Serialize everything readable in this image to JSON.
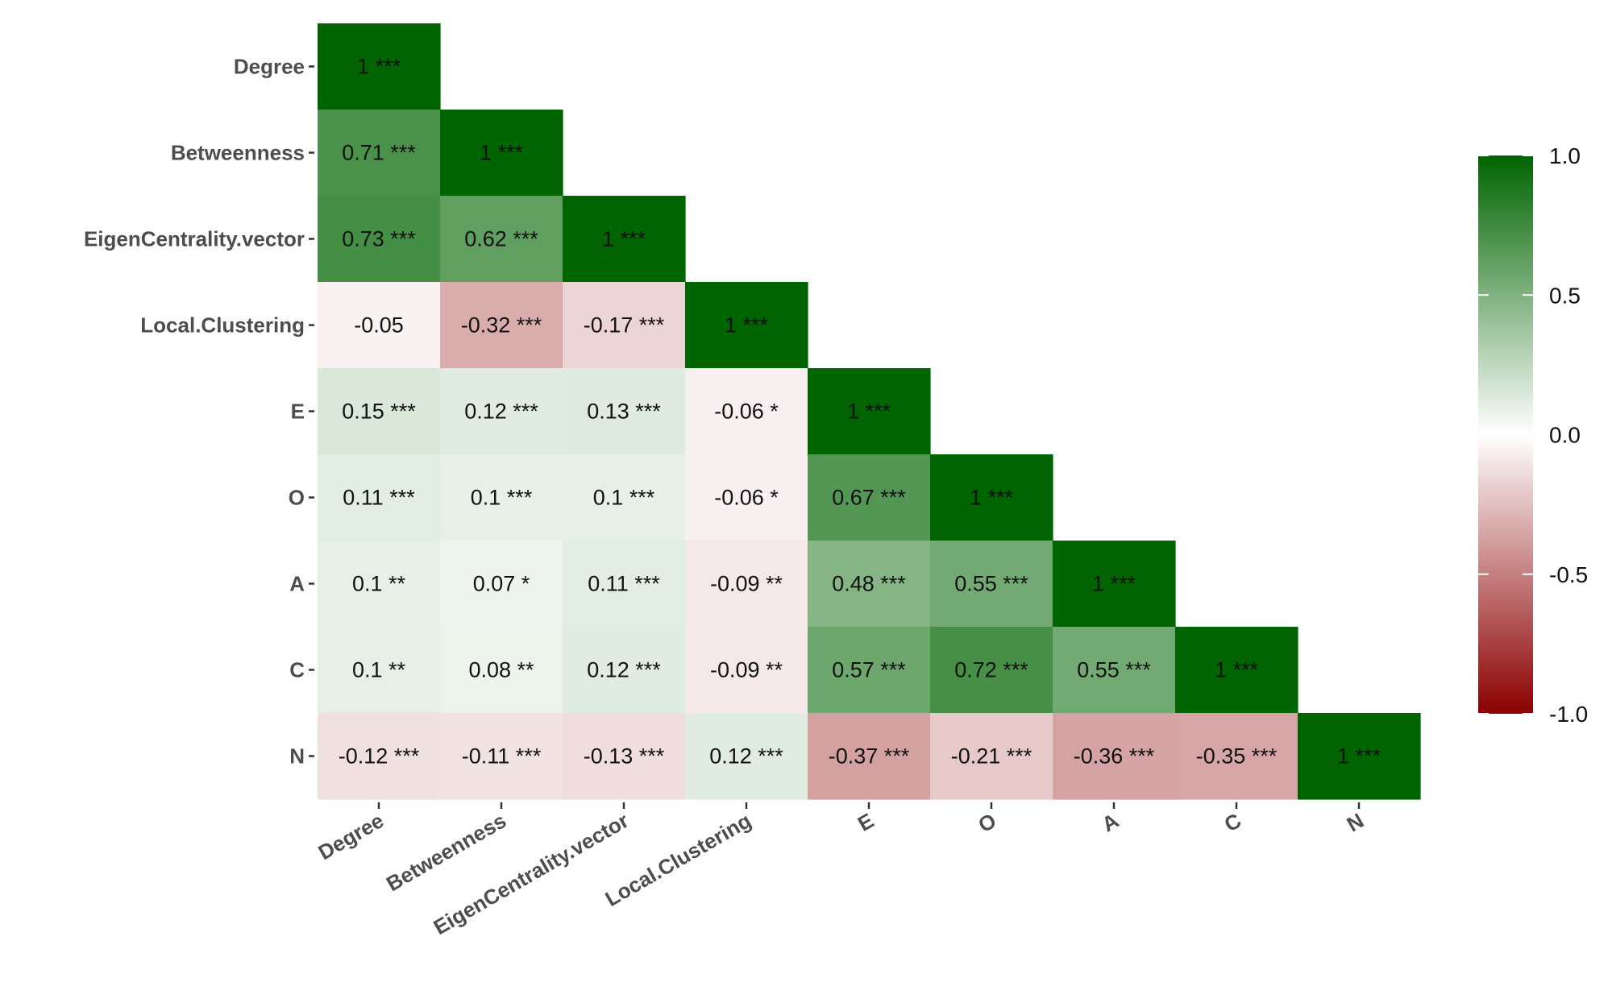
{
  "chart_data": {
    "type": "heatmap",
    "title": "",
    "xlabel": "",
    "ylabel": "",
    "variables": [
      "Degree",
      "Betweenness",
      "EigenCentrality.vector",
      "Local.Clustering",
      "E",
      "O",
      "A",
      "C",
      "N"
    ],
    "cells": [
      {
        "row": "Degree",
        "col": "Degree",
        "value": 1,
        "label": "1 ***"
      },
      {
        "row": "Betweenness",
        "col": "Degree",
        "value": 0.71,
        "label": "0.71 ***"
      },
      {
        "row": "Betweenness",
        "col": "Betweenness",
        "value": 1,
        "label": "1 ***"
      },
      {
        "row": "EigenCentrality.vector",
        "col": "Degree",
        "value": 0.73,
        "label": "0.73 ***"
      },
      {
        "row": "EigenCentrality.vector",
        "col": "Betweenness",
        "value": 0.62,
        "label": "0.62 ***"
      },
      {
        "row": "EigenCentrality.vector",
        "col": "EigenCentrality.vector",
        "value": 1,
        "label": "1 ***"
      },
      {
        "row": "Local.Clustering",
        "col": "Degree",
        "value": -0.05,
        "label": "-0.05"
      },
      {
        "row": "Local.Clustering",
        "col": "Betweenness",
        "value": -0.32,
        "label": "-0.32 ***"
      },
      {
        "row": "Local.Clustering",
        "col": "EigenCentrality.vector",
        "value": -0.17,
        "label": "-0.17 ***"
      },
      {
        "row": "Local.Clustering",
        "col": "Local.Clustering",
        "value": 1,
        "label": "1 ***"
      },
      {
        "row": "E",
        "col": "Degree",
        "value": 0.15,
        "label": "0.15 ***"
      },
      {
        "row": "E",
        "col": "Betweenness",
        "value": 0.12,
        "label": "0.12 ***"
      },
      {
        "row": "E",
        "col": "EigenCentrality.vector",
        "value": 0.13,
        "label": "0.13 ***"
      },
      {
        "row": "E",
        "col": "Local.Clustering",
        "value": -0.06,
        "label": "-0.06 *"
      },
      {
        "row": "E",
        "col": "E",
        "value": 1,
        "label": "1 ***"
      },
      {
        "row": "O",
        "col": "Degree",
        "value": 0.11,
        "label": "0.11 ***"
      },
      {
        "row": "O",
        "col": "Betweenness",
        "value": 0.1,
        "label": "0.1 ***"
      },
      {
        "row": "O",
        "col": "EigenCentrality.vector",
        "value": 0.1,
        "label": "0.1 ***"
      },
      {
        "row": "O",
        "col": "Local.Clustering",
        "value": -0.06,
        "label": "-0.06 *"
      },
      {
        "row": "O",
        "col": "E",
        "value": 0.67,
        "label": "0.67 ***"
      },
      {
        "row": "O",
        "col": "O",
        "value": 1,
        "label": "1 ***"
      },
      {
        "row": "A",
        "col": "Degree",
        "value": 0.1,
        "label": "0.1 **"
      },
      {
        "row": "A",
        "col": "Betweenness",
        "value": 0.07,
        "label": "0.07 *"
      },
      {
        "row": "A",
        "col": "EigenCentrality.vector",
        "value": 0.11,
        "label": "0.11 ***"
      },
      {
        "row": "A",
        "col": "Local.Clustering",
        "value": -0.09,
        "label": "-0.09 **"
      },
      {
        "row": "A",
        "col": "E",
        "value": 0.48,
        "label": "0.48 ***"
      },
      {
        "row": "A",
        "col": "O",
        "value": 0.55,
        "label": "0.55 ***"
      },
      {
        "row": "A",
        "col": "A",
        "value": 1,
        "label": "1 ***"
      },
      {
        "row": "C",
        "col": "Degree",
        "value": 0.1,
        "label": "0.1 **"
      },
      {
        "row": "C",
        "col": "Betweenness",
        "value": 0.08,
        "label": "0.08 **"
      },
      {
        "row": "C",
        "col": "EigenCentrality.vector",
        "value": 0.12,
        "label": "0.12 ***"
      },
      {
        "row": "C",
        "col": "Local.Clustering",
        "value": -0.09,
        "label": "-0.09 **"
      },
      {
        "row": "C",
        "col": "E",
        "value": 0.57,
        "label": "0.57 ***"
      },
      {
        "row": "C",
        "col": "O",
        "value": 0.72,
        "label": "0.72 ***"
      },
      {
        "row": "C",
        "col": "A",
        "value": 0.55,
        "label": "0.55 ***"
      },
      {
        "row": "C",
        "col": "C",
        "value": 1,
        "label": "1 ***"
      },
      {
        "row": "N",
        "col": "Degree",
        "value": -0.12,
        "label": "-0.12 ***"
      },
      {
        "row": "N",
        "col": "Betweenness",
        "value": -0.11,
        "label": "-0.11 ***"
      },
      {
        "row": "N",
        "col": "EigenCentrality.vector",
        "value": -0.13,
        "label": "-0.13 ***"
      },
      {
        "row": "N",
        "col": "Local.Clustering",
        "value": 0.12,
        "label": "0.12 ***"
      },
      {
        "row": "N",
        "col": "E",
        "value": -0.37,
        "label": "-0.37 ***"
      },
      {
        "row": "N",
        "col": "O",
        "value": -0.21,
        "label": "-0.21 ***"
      },
      {
        "row": "N",
        "col": "A",
        "value": -0.36,
        "label": "-0.36 ***"
      },
      {
        "row": "N",
        "col": "C",
        "value": -0.35,
        "label": "-0.35 ***"
      },
      {
        "row": "N",
        "col": "N",
        "value": 1,
        "label": "1 ***"
      }
    ],
    "color_scale": {
      "low": "#8b0000",
      "mid": "#ffffff",
      "high": "#006400",
      "domain": [
        -1,
        1
      ]
    },
    "legend": {
      "position": "right",
      "ticks": [
        {
          "value": 1.0,
          "label": "1.0"
        },
        {
          "value": 0.5,
          "label": "0.5"
        },
        {
          "value": 0.0,
          "label": "0.0"
        },
        {
          "value": -0.5,
          "label": "-0.5"
        },
        {
          "value": -1.0,
          "label": "-1.0"
        }
      ]
    }
  }
}
